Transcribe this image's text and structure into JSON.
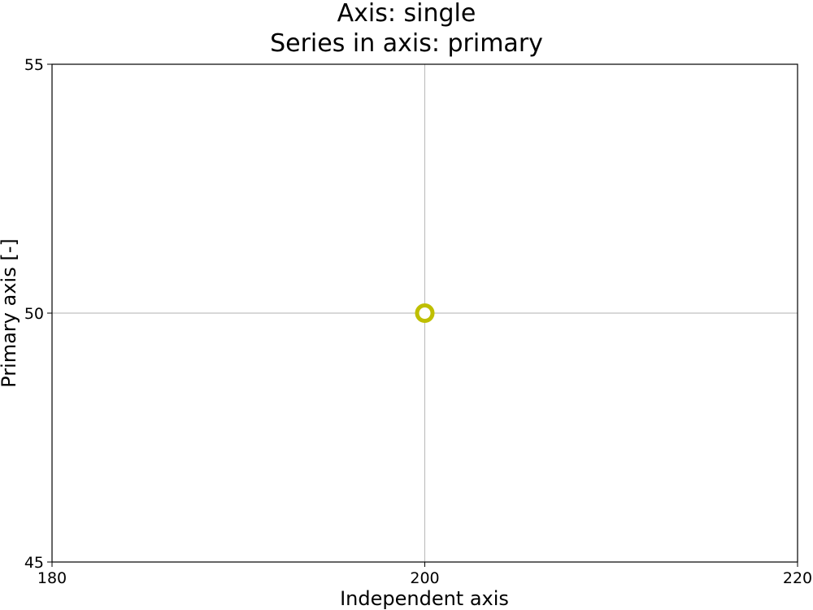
{
  "chart_data": {
    "type": "scatter",
    "title": "Axis: single",
    "subtitle": "Series in axis: primary",
    "xlabel": "Independent axis",
    "ylabel": "Primary axis [-]",
    "xlim": [
      180,
      220
    ],
    "ylim": [
      45,
      55
    ],
    "xticks": [
      "180",
      "200",
      "220"
    ],
    "yticks": [
      "45",
      "50",
      "55"
    ],
    "xtick_values": [
      180,
      200,
      220
    ],
    "ytick_values": [
      45,
      50,
      55
    ],
    "grid": true,
    "series": [
      {
        "marker": "hollow-circle",
        "color": "#bfbf00",
        "points": [
          {
            "x": 200,
            "y": 50
          }
        ]
      }
    ]
  }
}
